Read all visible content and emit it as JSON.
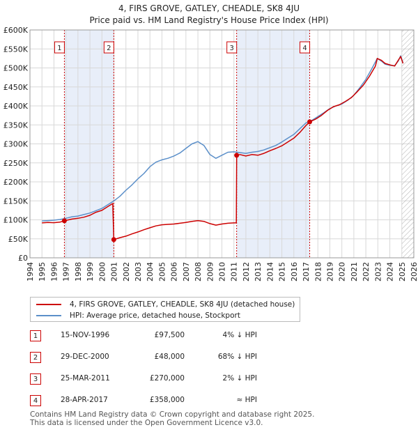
{
  "chart_data": {
    "type": "line",
    "title": "4, FIRS GROVE, GATLEY, CHEADLE, SK8 4JU",
    "subtitle": "Price paid vs. HM Land Registry's House Price Index (HPI)",
    "xlim": [
      1994,
      2026
    ],
    "ylim": [
      0,
      600000
    ],
    "x_ticks": [
      "1994",
      "1995",
      "1996",
      "1997",
      "1998",
      "1999",
      "2000",
      "2001",
      "2002",
      "2003",
      "2004",
      "2005",
      "2006",
      "2007",
      "2008",
      "2009",
      "2010",
      "2011",
      "2012",
      "2013",
      "2014",
      "2015",
      "2016",
      "2017",
      "2018",
      "2019",
      "2020",
      "2021",
      "2022",
      "2023",
      "2024",
      "2025",
      "2026"
    ],
    "y_ticks": [
      {
        "value": 0,
        "label": "£0"
      },
      {
        "value": 50000,
        "label": "£50K"
      },
      {
        "value": 100000,
        "label": "£100K"
      },
      {
        "value": 150000,
        "label": "£150K"
      },
      {
        "value": 200000,
        "label": "£200K"
      },
      {
        "value": 250000,
        "label": "£250K"
      },
      {
        "value": 300000,
        "label": "£300K"
      },
      {
        "value": 350000,
        "label": "£350K"
      },
      {
        "value": 400000,
        "label": "£400K"
      },
      {
        "value": 450000,
        "label": "£450K"
      },
      {
        "value": 500000,
        "label": "£500K"
      },
      {
        "value": 550000,
        "label": "£550K"
      },
      {
        "value": 600000,
        "label": "£600K"
      }
    ],
    "shaded_regions": [
      {
        "from": 1996.87,
        "to": 2000.99
      },
      {
        "from": 2011.23,
        "to": 2017.32
      }
    ],
    "hatched_region": {
      "from": 2025.0,
      "to": 2026
    },
    "series": [
      {
        "name": "4, FIRS GROVE, GATLEY, CHEADLE, SK8 4JU (detached house)",
        "color": "#cc0000",
        "points": [
          [
            1995.0,
            92000
          ],
          [
            1995.5,
            93000
          ],
          [
            1996.0,
            92500
          ],
          [
            1996.5,
            94000
          ],
          [
            1996.87,
            97500
          ],
          [
            1997.5,
            102000
          ],
          [
            1998.0,
            104000
          ],
          [
            1998.5,
            107000
          ],
          [
            1999.0,
            112000
          ],
          [
            1999.5,
            120000
          ],
          [
            2000.0,
            125000
          ],
          [
            2000.5,
            135000
          ],
          [
            2000.9,
            143000
          ],
          [
            2000.99,
            48000
          ],
          [
            2001.5,
            53000
          ],
          [
            2002.0,
            57000
          ],
          [
            2002.5,
            63000
          ],
          [
            2003.0,
            68000
          ],
          [
            2003.5,
            74000
          ],
          [
            2004.0,
            79000
          ],
          [
            2004.5,
            84000
          ],
          [
            2005.0,
            87000
          ],
          [
            2005.5,
            88000
          ],
          [
            2006.0,
            89000
          ],
          [
            2006.5,
            91000
          ],
          [
            2007.0,
            93000
          ],
          [
            2007.5,
            96000
          ],
          [
            2008.0,
            98000
          ],
          [
            2008.5,
            96000
          ],
          [
            2009.0,
            90000
          ],
          [
            2009.5,
            86000
          ],
          [
            2010.0,
            89000
          ],
          [
            2010.5,
            91000
          ],
          [
            2011.0,
            92000
          ],
          [
            2011.2,
            92000
          ],
          [
            2011.23,
            270000
          ],
          [
            2011.5,
            272000
          ],
          [
            2012.0,
            268000
          ],
          [
            2012.5,
            272000
          ],
          [
            2013.0,
            270000
          ],
          [
            2013.5,
            275000
          ],
          [
            2014.0,
            282000
          ],
          [
            2014.5,
            288000
          ],
          [
            2015.0,
            295000
          ],
          [
            2015.5,
            305000
          ],
          [
            2016.0,
            315000
          ],
          [
            2016.5,
            330000
          ],
          [
            2017.0,
            348000
          ],
          [
            2017.32,
            358000
          ],
          [
            2017.8,
            365000
          ],
          [
            2018.3,
            375000
          ],
          [
            2018.8,
            388000
          ],
          [
            2019.3,
            398000
          ],
          [
            2019.8,
            403000
          ],
          [
            2020.3,
            412000
          ],
          [
            2020.8,
            422000
          ],
          [
            2021.3,
            438000
          ],
          [
            2021.8,
            455000
          ],
          [
            2022.3,
            478000
          ],
          [
            2022.8,
            505000
          ],
          [
            2022.95,
            525000
          ],
          [
            2023.3,
            520000
          ],
          [
            2023.6,
            512000
          ],
          [
            2024.0,
            508000
          ],
          [
            2024.4,
            505000
          ],
          [
            2024.7,
            520000
          ],
          [
            2024.9,
            530000
          ],
          [
            2025.1,
            512000
          ]
        ]
      },
      {
        "name": "HPI: Average price, detached house, Stockport",
        "color": "#5b8fc9",
        "points": [
          [
            1995.0,
            97000
          ],
          [
            1995.5,
            98000
          ],
          [
            1996.0,
            99000
          ],
          [
            1996.5,
            101000
          ],
          [
            1997.0,
            104000
          ],
          [
            1997.5,
            108000
          ],
          [
            1998.0,
            110000
          ],
          [
            1998.5,
            114000
          ],
          [
            1999.0,
            118000
          ],
          [
            1999.5,
            124000
          ],
          [
            2000.0,
            130000
          ],
          [
            2000.5,
            140000
          ],
          [
            2001.0,
            150000
          ],
          [
            2001.5,
            162000
          ],
          [
            2002.0,
            178000
          ],
          [
            2002.5,
            192000
          ],
          [
            2003.0,
            208000
          ],
          [
            2003.5,
            222000
          ],
          [
            2004.0,
            240000
          ],
          [
            2004.5,
            252000
          ],
          [
            2005.0,
            258000
          ],
          [
            2005.5,
            262000
          ],
          [
            2006.0,
            268000
          ],
          [
            2006.5,
            276000
          ],
          [
            2007.0,
            288000
          ],
          [
            2007.5,
            300000
          ],
          [
            2008.0,
            306000
          ],
          [
            2008.5,
            296000
          ],
          [
            2009.0,
            272000
          ],
          [
            2009.5,
            262000
          ],
          [
            2010.0,
            270000
          ],
          [
            2010.5,
            278000
          ],
          [
            2011.0,
            279000
          ],
          [
            2011.5,
            277000
          ],
          [
            2012.0,
            275000
          ],
          [
            2012.5,
            278000
          ],
          [
            2013.0,
            280000
          ],
          [
            2013.5,
            284000
          ],
          [
            2014.0,
            290000
          ],
          [
            2014.5,
            296000
          ],
          [
            2015.0,
            305000
          ],
          [
            2015.5,
            315000
          ],
          [
            2016.0,
            325000
          ],
          [
            2016.5,
            340000
          ],
          [
            2017.0,
            355000
          ],
          [
            2017.5,
            362000
          ],
          [
            2018.0,
            372000
          ],
          [
            2018.5,
            382000
          ],
          [
            2019.0,
            393000
          ],
          [
            2019.5,
            400000
          ],
          [
            2020.0,
            405000
          ],
          [
            2020.5,
            415000
          ],
          [
            2021.0,
            428000
          ],
          [
            2021.5,
            448000
          ],
          [
            2022.0,
            470000
          ],
          [
            2022.5,
            498000
          ],
          [
            2022.95,
            525000
          ],
          [
            2023.3,
            518000
          ],
          [
            2023.6,
            510000
          ],
          [
            2024.0,
            507000
          ],
          [
            2024.4,
            506000
          ],
          [
            2024.7,
            518000
          ],
          [
            2024.9,
            532000
          ],
          [
            2025.1,
            513000
          ]
        ]
      }
    ],
    "sales": [
      {
        "id": "1",
        "x": 1996.87,
        "price": 97500
      },
      {
        "id": "2",
        "x": 2000.99,
        "price": 48000
      },
      {
        "id": "3",
        "x": 2011.23,
        "price": 270000
      },
      {
        "id": "4",
        "x": 2017.32,
        "price": 358000
      }
    ]
  },
  "legend": {
    "property": "4, FIRS GROVE, GATLEY, CHEADLE, SK8 4JU (detached house)",
    "hpi": "HPI: Average price, detached house, Stockport"
  },
  "sales_table": [
    {
      "num": "1",
      "date": "15-NOV-1996",
      "price": "£97,500",
      "hpi": "4% ↓ HPI"
    },
    {
      "num": "2",
      "date": "29-DEC-2000",
      "price": "£48,000",
      "hpi": "68% ↓ HPI"
    },
    {
      "num": "3",
      "date": "25-MAR-2011",
      "price": "£270,000",
      "hpi": "2% ↓ HPI"
    },
    {
      "num": "4",
      "date": "28-APR-2017",
      "price": "£358,000",
      "hpi": "≈ HPI"
    }
  ],
  "footer": {
    "line1": "Contains HM Land Registry data © Crown copyright and database right 2025.",
    "line2": "This data is licensed under the Open Government Licence v3.0."
  },
  "colors": {
    "property_line": "#cc0000",
    "hpi_line": "#5b8fc9",
    "shade": "#e8eef9",
    "grid": "#d8d8d8"
  }
}
